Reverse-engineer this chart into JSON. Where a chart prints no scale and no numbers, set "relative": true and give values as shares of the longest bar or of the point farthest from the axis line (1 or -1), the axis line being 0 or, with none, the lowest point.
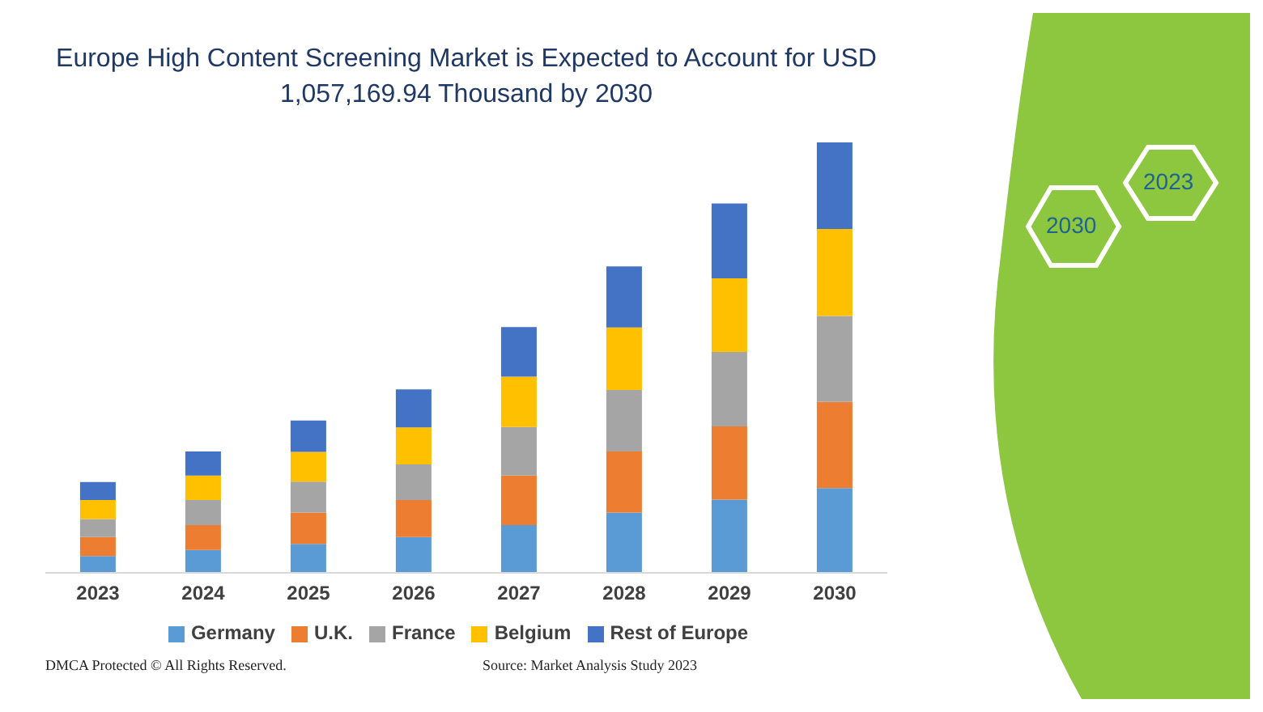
{
  "chart_data": {
    "type": "bar",
    "title": "Europe High Content Screening Market is Expected to Account for USD 1,057,169.94 Thousand by 2030",
    "categories": [
      "2023",
      "2024",
      "2025",
      "2026",
      "2027",
      "2028",
      "2029",
      "2030"
    ],
    "stacked": true,
    "relative": true,
    "legend": "bottom",
    "series": [
      {
        "name": "Germany",
        "color": "#5b9bd5",
        "values": [
          0.039,
          0.053,
          0.067,
          0.083,
          0.111,
          0.14,
          0.17,
          0.197
        ]
      },
      {
        "name": "U.K.",
        "color": "#ed7d31",
        "values": [
          0.044,
          0.058,
          0.073,
          0.086,
          0.115,
          0.142,
          0.17,
          0.2
        ]
      },
      {
        "name": "France",
        "color": "#a5a5a5",
        "values": [
          0.042,
          0.058,
          0.072,
          0.083,
          0.113,
          0.143,
          0.173,
          0.2
        ]
      },
      {
        "name": "Belgium",
        "color": "#ffc000",
        "values": [
          0.044,
          0.057,
          0.069,
          0.086,
          0.117,
          0.145,
          0.171,
          0.202
        ]
      },
      {
        "name": "Rest of Europe",
        "color": "#4472c4",
        "values": [
          0.042,
          0.056,
          0.073,
          0.088,
          0.115,
          0.142,
          0.174,
          0.201
        ]
      }
    ],
    "annotations": [
      "DMCA Protected © All Rights Reserved.",
      "Source: Market Analysis Study 2023",
      "2023",
      "2030"
    ]
  }
}
